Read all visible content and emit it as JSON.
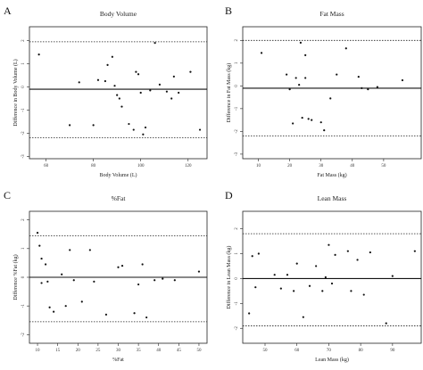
{
  "chart_data": [
    {
      "panel_letter": "A",
      "type": "scatter",
      "title": "Body Volume",
      "xlabel": "Body Volume (L)",
      "ylabel": "Difference in Body Volume (L)",
      "xlim": [
        53,
        128
      ],
      "ylim": [
        -3.1,
        2.6
      ],
      "xticks": [
        60,
        80,
        100,
        120
      ],
      "yticks": [
        -3,
        -2,
        -1,
        0,
        1,
        2
      ],
      "hlines": {
        "mean": -0.1,
        "upper": 1.95,
        "lower": -2.2
      },
      "points": [
        {
          "x": 57,
          "y": 1.4
        },
        {
          "x": 74,
          "y": 0.2
        },
        {
          "x": 70,
          "y": -1.65
        },
        {
          "x": 80,
          "y": -1.65
        },
        {
          "x": 82,
          "y": 0.3
        },
        {
          "x": 85,
          "y": 0.25
        },
        {
          "x": 86,
          "y": 0.95
        },
        {
          "x": 88,
          "y": 1.3
        },
        {
          "x": 89,
          "y": 0.05
        },
        {
          "x": 90,
          "y": -0.35
        },
        {
          "x": 91,
          "y": -0.5
        },
        {
          "x": 92,
          "y": -0.85
        },
        {
          "x": 95,
          "y": -1.6
        },
        {
          "x": 97,
          "y": -1.85
        },
        {
          "x": 98,
          "y": 0.65
        },
        {
          "x": 99,
          "y": 0.55
        },
        {
          "x": 100,
          "y": -0.25
        },
        {
          "x": 101,
          "y": -2.05
        },
        {
          "x": 102,
          "y": -1.75
        },
        {
          "x": 104,
          "y": -0.15
        },
        {
          "x": 106,
          "y": 1.9
        },
        {
          "x": 108,
          "y": 0.1
        },
        {
          "x": 111,
          "y": -0.2
        },
        {
          "x": 113,
          "y": -0.5
        },
        {
          "x": 114,
          "y": 0.45
        },
        {
          "x": 116,
          "y": -0.25
        },
        {
          "x": 121,
          "y": 0.65
        },
        {
          "x": 125,
          "y": -1.85
        }
      ]
    },
    {
      "panel_letter": "B",
      "type": "scatter",
      "title": "Fat Mass",
      "xlabel": "Fat Mass (kg)",
      "ylabel": "Difference in Fat Mass (kg)",
      "xlim": [
        5,
        62
      ],
      "ylim": [
        -3.2,
        2.6
      ],
      "xticks": [
        10,
        20,
        30,
        40,
        50
      ],
      "yticks": [
        -3,
        -2,
        -1,
        0,
        1,
        2
      ],
      "hlines": {
        "mean": -0.1,
        "upper": 2.0,
        "lower": -2.2
      },
      "points": [
        {
          "x": 11,
          "y": 1.45
        },
        {
          "x": 19,
          "y": 0.5
        },
        {
          "x": 20,
          "y": -0.15
        },
        {
          "x": 21,
          "y": -1.65
        },
        {
          "x": 22,
          "y": 0.35
        },
        {
          "x": 23,
          "y": 0.05
        },
        {
          "x": 23.5,
          "y": 1.9
        },
        {
          "x": 24,
          "y": -1.4
        },
        {
          "x": 25,
          "y": 0.35
        },
        {
          "x": 25,
          "y": 1.35
        },
        {
          "x": 26,
          "y": -1.45
        },
        {
          "x": 27,
          "y": -1.5
        },
        {
          "x": 30,
          "y": -1.6
        },
        {
          "x": 31,
          "y": -1.95
        },
        {
          "x": 33,
          "y": -0.55
        },
        {
          "x": 35,
          "y": 0.5
        },
        {
          "x": 38,
          "y": 1.65
        },
        {
          "x": 42,
          "y": 0.4
        },
        {
          "x": 43,
          "y": -0.1
        },
        {
          "x": 45,
          "y": -0.15
        },
        {
          "x": 48,
          "y": -0.05
        },
        {
          "x": 56,
          "y": 0.25
        }
      ]
    },
    {
      "panel_letter": "C",
      "type": "scatter",
      "title": "%Fat",
      "xlabel": "%Fat",
      "ylabel": "Difference %Fat (kg)",
      "xlim": [
        8,
        52
      ],
      "ylim": [
        -2.3,
        2.3
      ],
      "xticks": [
        10,
        15,
        20,
        25,
        30,
        35,
        40,
        45,
        50
      ],
      "yticks": [
        -2,
        -1,
        0,
        1,
        2
      ],
      "hlines": {
        "mean": 0.0,
        "upper": 1.45,
        "lower": -1.55
      },
      "points": [
        {
          "x": 10,
          "y": 1.55
        },
        {
          "x": 10.5,
          "y": 1.1
        },
        {
          "x": 11,
          "y": 0.65
        },
        {
          "x": 11,
          "y": -0.2
        },
        {
          "x": 12,
          "y": 0.45
        },
        {
          "x": 12.5,
          "y": -0.15
        },
        {
          "x": 13,
          "y": -1.05
        },
        {
          "x": 14,
          "y": -1.2
        },
        {
          "x": 16,
          "y": 0.1
        },
        {
          "x": 17,
          "y": -1.0
        },
        {
          "x": 18,
          "y": 0.95
        },
        {
          "x": 19,
          "y": -0.1
        },
        {
          "x": 21,
          "y": -0.85
        },
        {
          "x": 23,
          "y": 0.95
        },
        {
          "x": 24,
          "y": -0.15
        },
        {
          "x": 27,
          "y": -1.3
        },
        {
          "x": 30,
          "y": 0.35
        },
        {
          "x": 31,
          "y": 0.4
        },
        {
          "x": 34,
          "y": -1.25
        },
        {
          "x": 35,
          "y": -0.25
        },
        {
          "x": 36,
          "y": 0.45
        },
        {
          "x": 37,
          "y": -1.4
        },
        {
          "x": 39,
          "y": -0.1
        },
        {
          "x": 41,
          "y": -0.05
        },
        {
          "x": 44,
          "y": -0.1
        },
        {
          "x": 50,
          "y": 0.2
        }
      ]
    },
    {
      "panel_letter": "D",
      "type": "scatter",
      "title": "Lean Mass",
      "xlabel": "Lean Mass (kg)",
      "ylabel": "Difference in Lean Mass (kg)",
      "xlim": [
        43,
        99
      ],
      "ylim": [
        -2.6,
        2.7
      ],
      "xticks": [
        50,
        60,
        70,
        80,
        90
      ],
      "yticks": [
        -2,
        -1,
        0,
        1,
        2
      ],
      "hlines": {
        "mean": 0.0,
        "upper": 1.8,
        "lower": -1.9
      },
      "points": [
        {
          "x": 45,
          "y": -1.4
        },
        {
          "x": 46,
          "y": 0.9
        },
        {
          "x": 47,
          "y": -0.35
        },
        {
          "x": 48,
          "y": 1.0
        },
        {
          "x": 53,
          "y": 0.15
        },
        {
          "x": 55,
          "y": -0.4
        },
        {
          "x": 57,
          "y": 0.15
        },
        {
          "x": 59,
          "y": -0.5
        },
        {
          "x": 60,
          "y": 0.6
        },
        {
          "x": 62,
          "y": -1.55
        },
        {
          "x": 64,
          "y": -0.3
        },
        {
          "x": 66,
          "y": 0.5
        },
        {
          "x": 68,
          "y": -0.5
        },
        {
          "x": 69,
          "y": 0.05
        },
        {
          "x": 70,
          "y": 1.35
        },
        {
          "x": 71,
          "y": -0.2
        },
        {
          "x": 72,
          "y": 0.95
        },
        {
          "x": 76,
          "y": 1.1
        },
        {
          "x": 77,
          "y": -0.5
        },
        {
          "x": 79,
          "y": 0.75
        },
        {
          "x": 81,
          "y": -0.65
        },
        {
          "x": 83,
          "y": 1.05
        },
        {
          "x": 88,
          "y": -1.8
        },
        {
          "x": 90,
          "y": 0.1
        },
        {
          "x": 97,
          "y": 1.1
        }
      ]
    }
  ]
}
